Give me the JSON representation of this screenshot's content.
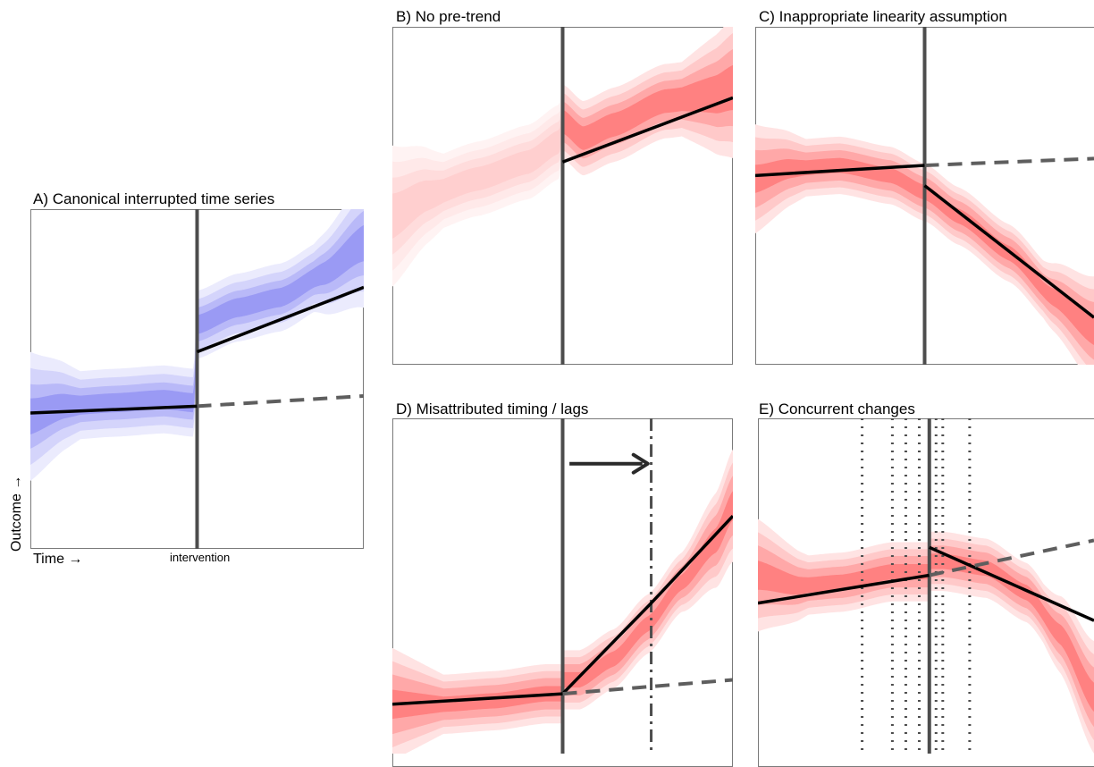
{
  "colors": {
    "blue_bands": [
      "#ebebfd",
      "#d4d4fb",
      "#b9b9f8",
      "#9a9af4"
    ],
    "red_bands": [
      "#ffe3e3",
      "#ffc9c9",
      "#ffa8a8",
      "#ff8181"
    ],
    "red_faded_bands": [
      "#fff3f3",
      "#ffe9e9",
      "#ffdcdc",
      "#ffcfcf"
    ],
    "trend_line": "#000000",
    "counterfactual": "#5e5e5e",
    "intervention_line": "#4d4d4d",
    "frame": "#7a7a7a"
  },
  "labels": {
    "y_axis": "Outcome →",
    "x_axis": "Time →",
    "intervention_tick": "intervention"
  },
  "chart_data": [
    {
      "id": "A",
      "title": "A) Canonical interrupted time series",
      "type": "line",
      "x_range": [
        0,
        1
      ],
      "y_range": [
        0,
        1
      ],
      "intervention_x": 0.5,
      "band_color": "blue",
      "band_center": [
        [
          0,
          0.39
        ],
        [
          0.1,
          0.42
        ],
        [
          0.25,
          0.43
        ],
        [
          0.4,
          0.44
        ],
        [
          0.49,
          0.43
        ],
        [
          0.5,
          0.66
        ],
        [
          0.62,
          0.71
        ],
        [
          0.75,
          0.74
        ],
        [
          0.88,
          0.81
        ],
        [
          1,
          0.9
        ]
      ],
      "band_halfwidths": [
        0.1,
        0.075,
        0.05,
        0.028
      ],
      "segments": [
        {
          "kind": "pre-trend",
          "style": "solid",
          "points": [
            [
              0,
              0.4
            ],
            [
              0.5,
              0.42
            ]
          ]
        },
        {
          "kind": "post-trend",
          "style": "solid",
          "points": [
            [
              0.5,
              0.58
            ],
            [
              1,
              0.77
            ]
          ]
        },
        {
          "kind": "counterfactual",
          "style": "dashed",
          "points": [
            [
              0.5,
              0.42
            ],
            [
              1,
              0.45
            ]
          ]
        }
      ],
      "extra_lines": []
    },
    {
      "id": "B",
      "title": "B) No pre-trend",
      "type": "line",
      "x_range": [
        0,
        1
      ],
      "y_range": [
        0,
        1
      ],
      "intervention_x": 0.5,
      "band_color": "red",
      "faded_pre": true,
      "band_center": [
        [
          0,
          0.44
        ],
        [
          0.1,
          0.5
        ],
        [
          0.25,
          0.55
        ],
        [
          0.4,
          0.6
        ],
        [
          0.49,
          0.66
        ],
        [
          0.5,
          0.72
        ],
        [
          0.56,
          0.67
        ],
        [
          0.65,
          0.71
        ],
        [
          0.8,
          0.78
        ],
        [
          0.95,
          0.8
        ],
        [
          1,
          0.82
        ]
      ],
      "band_halfwidths": [
        0.11,
        0.085,
        0.06,
        0.035
      ],
      "segments": [
        {
          "kind": "post-trend",
          "style": "solid",
          "points": [
            [
              0.5,
              0.6
            ],
            [
              1,
              0.79
            ]
          ]
        }
      ],
      "extra_lines": []
    },
    {
      "id": "C",
      "title": "C) Inappropriate linearity assumption",
      "type": "line",
      "x_range": [
        0,
        1
      ],
      "y_range": [
        0,
        1
      ],
      "intervention_x": 0.5,
      "band_color": "red",
      "band_center": [
        [
          0,
          0.55
        ],
        [
          0.1,
          0.58
        ],
        [
          0.25,
          0.59
        ],
        [
          0.4,
          0.56
        ],
        [
          0.5,
          0.51
        ],
        [
          0.6,
          0.44
        ],
        [
          0.75,
          0.33
        ],
        [
          0.88,
          0.2
        ],
        [
          1,
          0.1
        ]
      ],
      "band_halfwidths": [
        0.085,
        0.065,
        0.045,
        0.022
      ],
      "segments": [
        {
          "kind": "pre-trend",
          "style": "solid",
          "points": [
            [
              0,
              0.56
            ],
            [
              0.5,
              0.59
            ]
          ]
        },
        {
          "kind": "post-trend",
          "style": "solid",
          "points": [
            [
              0.5,
              0.53
            ],
            [
              1,
              0.14
            ]
          ]
        },
        {
          "kind": "counterfactual",
          "style": "dashed",
          "points": [
            [
              0.5,
              0.59
            ],
            [
              1,
              0.61
            ]
          ]
        }
      ],
      "extra_lines": []
    },
    {
      "id": "D",
      "title": "D) Misattributed timing / lags",
      "type": "line",
      "x_range": [
        0,
        1
      ],
      "y_range": [
        0,
        1
      ],
      "intervention_x": 0.5,
      "lag_x": 0.76,
      "band_color": "red",
      "band_center": [
        [
          0,
          0.18
        ],
        [
          0.15,
          0.18
        ],
        [
          0.3,
          0.19
        ],
        [
          0.45,
          0.21
        ],
        [
          0.55,
          0.25
        ],
        [
          0.65,
          0.31
        ],
        [
          0.75,
          0.41
        ],
        [
          0.85,
          0.53
        ],
        [
          0.95,
          0.65
        ],
        [
          1,
          0.75
        ]
      ],
      "band_halfwidths": [
        0.085,
        0.065,
        0.045,
        0.022
      ],
      "segments": [
        {
          "kind": "pre-trend",
          "style": "solid",
          "points": [
            [
              0,
              0.18
            ],
            [
              0.5,
              0.21
            ]
          ]
        },
        {
          "kind": "post-trend",
          "style": "solid",
          "points": [
            [
              0.5,
              0.21
            ],
            [
              0.76,
              0.47
            ],
            [
              1,
              0.72
            ]
          ]
        },
        {
          "kind": "counterfactual",
          "style": "dashed",
          "points": [
            [
              0.5,
              0.21
            ],
            [
              1,
              0.25
            ]
          ]
        }
      ],
      "arrow": {
        "from": [
          0.52,
          0.87
        ],
        "to": [
          0.75,
          0.87
        ]
      },
      "extra_lines": [
        {
          "kind": "lag-line",
          "style": "dashdot",
          "x": 0.76
        }
      ]
    },
    {
      "id": "E",
      "title": "E) Concurrent changes",
      "type": "line",
      "x_range": [
        0,
        1
      ],
      "y_range": [
        0,
        1
      ],
      "intervention_x": 0.51,
      "band_color": "red",
      "band_center": [
        [
          0,
          0.55
        ],
        [
          0.12,
          0.52
        ],
        [
          0.25,
          0.53
        ],
        [
          0.4,
          0.56
        ],
        [
          0.55,
          0.59
        ],
        [
          0.68,
          0.57
        ],
        [
          0.8,
          0.5
        ],
        [
          0.9,
          0.38
        ],
        [
          1,
          0.2
        ]
      ],
      "band_halfwidths": [
        0.085,
        0.065,
        0.045,
        0.022
      ],
      "segments": [
        {
          "kind": "pre-trend",
          "style": "solid",
          "points": [
            [
              0,
              0.47
            ],
            [
              0.51,
              0.55
            ]
          ]
        },
        {
          "kind": "post-trend",
          "style": "solid",
          "points": [
            [
              0.51,
              0.63
            ],
            [
              1,
              0.42
            ]
          ]
        },
        {
          "kind": "counterfactual",
          "style": "dashed",
          "points": [
            [
              0.51,
              0.55
            ],
            [
              1,
              0.65
            ]
          ]
        }
      ],
      "extra_lines": [
        {
          "kind": "concurrent-event",
          "style": "dotted",
          "x": 0.31
        },
        {
          "kind": "concurrent-event",
          "style": "dotted",
          "x": 0.4
        },
        {
          "kind": "concurrent-event",
          "style": "dotted",
          "x": 0.44
        },
        {
          "kind": "concurrent-event",
          "style": "dotted",
          "x": 0.48
        },
        {
          "kind": "concurrent-event",
          "style": "dotted",
          "x": 0.53
        },
        {
          "kind": "concurrent-event",
          "style": "dotted",
          "x": 0.55
        },
        {
          "kind": "concurrent-event",
          "style": "dotted",
          "x": 0.63
        }
      ]
    }
  ]
}
